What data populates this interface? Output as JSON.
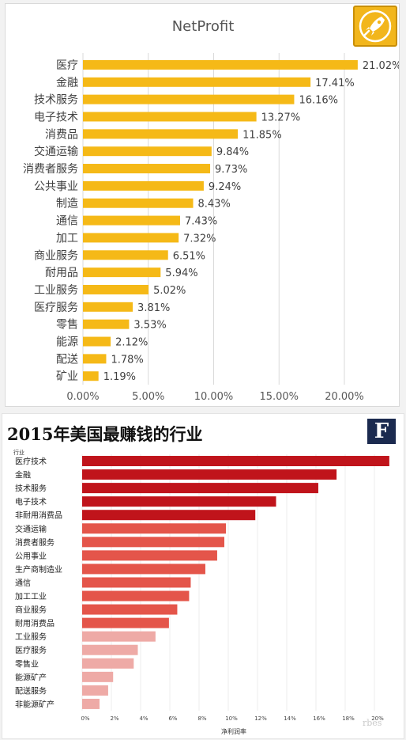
{
  "chart_data": [
    {
      "type": "bar",
      "orientation": "horizontal",
      "title": "NetProfit",
      "categories": [
        "医疗",
        "金融",
        "技术服务",
        "电子技术",
        "消费品",
        "交通运输",
        "消费者服务",
        "公共事业",
        "制造",
        "通信",
        "加工",
        "商业服务",
        "耐用品",
        "工业服务",
        "医疗服务",
        "零售",
        "能源",
        "配送",
        "矿业"
      ],
      "values": [
        21.02,
        17.41,
        16.16,
        13.27,
        11.85,
        9.84,
        9.73,
        9.24,
        8.43,
        7.43,
        7.32,
        6.51,
        5.94,
        5.02,
        3.81,
        3.53,
        2.12,
        1.78,
        1.19
      ],
      "value_labels": [
        "21.02%",
        "17.41%",
        "16.16%",
        "13.27%",
        "11.85%",
        "9.84%",
        "9.73%",
        "9.24%",
        "8.43%",
        "7.43%",
        "7.32%",
        "6.51%",
        "5.94%",
        "5.02%",
        "3.81%",
        "3.53%",
        "2.12%",
        "1.78%",
        "1.19%"
      ],
      "xlim": [
        0,
        20
      ],
      "xticks": [
        "0.00%",
        "5.00%",
        "10.00%",
        "15.00%",
        "20.00%"
      ],
      "grid": true,
      "bar_color": "#f5b917"
    },
    {
      "type": "bar",
      "orientation": "horizontal",
      "title": "2015年美国最赚钱的行业",
      "ylabel": "行业",
      "xlabel": "净利润率",
      "categories": [
        "医疗技术",
        "金融",
        "技术服务",
        "电子技术",
        "非耐用消费品",
        "交通运输",
        "消费者服务",
        "公用事业",
        "生产商制造业",
        "通信",
        "加工工业",
        "商业服务",
        "耐用消费品",
        "工业服务",
        "医疗服务",
        "零售业",
        "能源矿产",
        "配送服务",
        "非能源矿产"
      ],
      "values": [
        21.02,
        17.41,
        16.16,
        13.27,
        11.85,
        9.84,
        9.73,
        9.24,
        8.43,
        7.43,
        7.32,
        6.51,
        5.94,
        5.02,
        3.81,
        3.53,
        2.12,
        1.78,
        1.19
      ],
      "colors": [
        "#c0141b",
        "#c0141b",
        "#c0141b",
        "#c0141b",
        "#c0141b",
        "#e4554a",
        "#e4554a",
        "#e4554a",
        "#e4554a",
        "#e4554a",
        "#e4554a",
        "#e4554a",
        "#e4554a",
        "#eeaaa6",
        "#eeaaa6",
        "#eeaaa6",
        "#eeaaa6",
        "#eeaaa6",
        "#eeaaa6"
      ],
      "xlim": [
        0,
        22
      ],
      "xticks": [
        "0%",
        "2%",
        "4%",
        "6%",
        "8%",
        "10%",
        "12%",
        "14%",
        "16%",
        "18%",
        "20%"
      ],
      "grid": true
    }
  ],
  "logo_top": {
    "icon": "rocket-icon"
  },
  "logo_bottom": {
    "text": "F"
  },
  "watermark": {
    "text": "rbes"
  }
}
